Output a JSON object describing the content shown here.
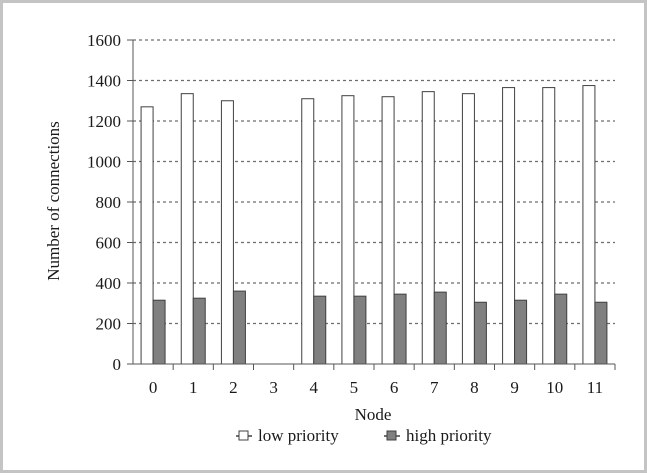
{
  "chart_data": {
    "type": "bar",
    "xlabel": "Node",
    "ylabel": "Number of connections",
    "categories": [
      "0",
      "1",
      "2",
      "3",
      "4",
      "5",
      "6",
      "7",
      "8",
      "9",
      "10",
      "11"
    ],
    "ylim": [
      0,
      1600
    ],
    "yticks": [
      "0",
      "200",
      "400",
      "600",
      "800",
      "1000",
      "1200",
      "1400",
      "1600"
    ],
    "grid": true,
    "legend_position": "bottom",
    "series": [
      {
        "name": "low priority",
        "color": "#ffffff",
        "values": [
          1270,
          1335,
          1300,
          0,
          1310,
          1325,
          1320,
          1345,
          1335,
          1365,
          1365,
          1375
        ]
      },
      {
        "name": "high priority",
        "color": "#808080",
        "values": [
          315,
          325,
          360,
          0,
          335,
          335,
          345,
          355,
          305,
          315,
          345,
          305
        ]
      }
    ]
  }
}
